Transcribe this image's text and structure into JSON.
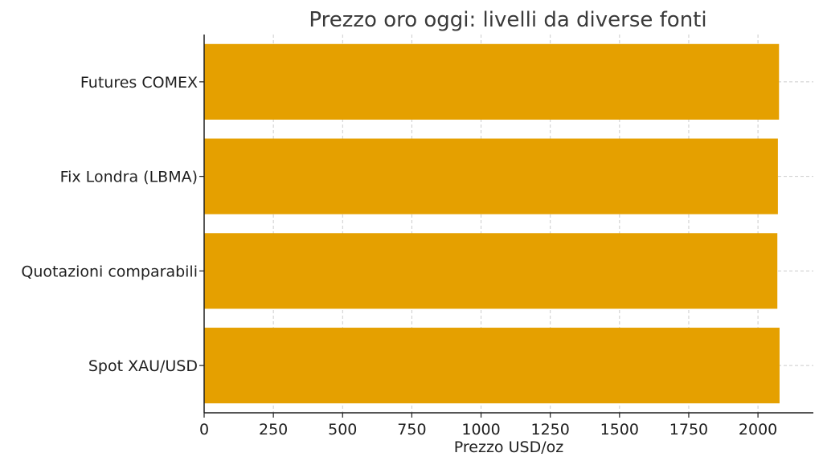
{
  "chart_data": {
    "type": "bar",
    "orientation": "horizontal",
    "title": "Prezzo oro oggi: livelli da diverse fonti",
    "xlabel": "Prezzo USD/oz",
    "ylabel": "",
    "categories": [
      "Spot XAU/USD",
      "Quotazioni comparabili",
      "Fix Londra (LBMA)",
      "Futures COMEX"
    ],
    "values": [
      2078,
      2070,
      2072,
      2076
    ],
    "xlim": [
      0,
      2200
    ],
    "xticks": [
      0,
      250,
      500,
      750,
      1000,
      1250,
      1500,
      1750,
      2000
    ],
    "grid": true,
    "legend": "none",
    "bar_color": "#E5A000"
  }
}
